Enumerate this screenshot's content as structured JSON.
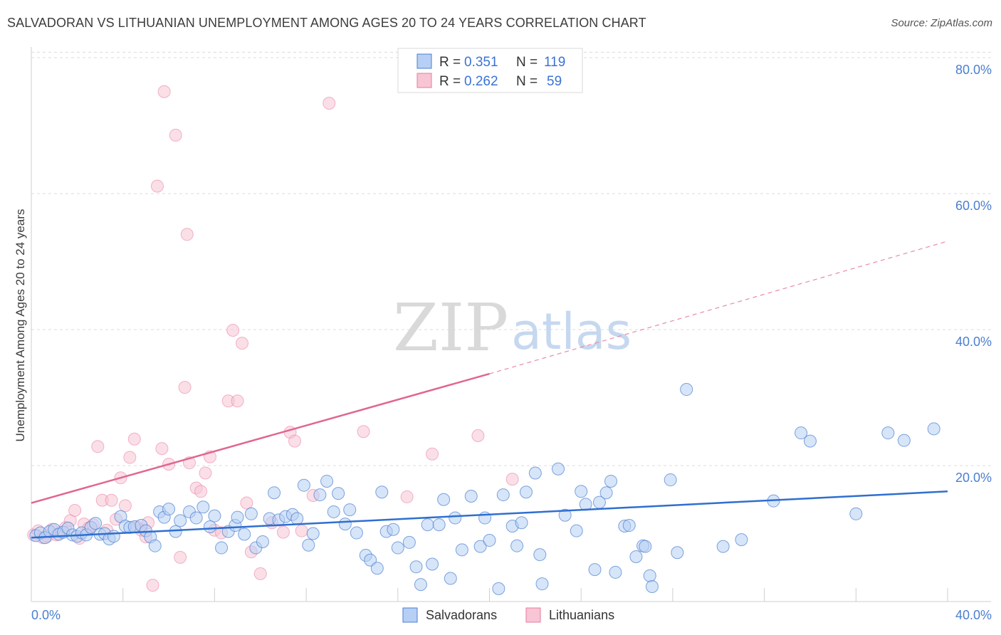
{
  "title": "SALVADORAN VS LITHUANIAN UNEMPLOYMENT AMONG AGES 20 TO 24 YEARS CORRELATION CHART",
  "source": "Source: ZipAtlas.com",
  "watermark": {
    "zip": "ZIP",
    "atlas": "atlas"
  },
  "legend": {
    "rows": [
      {
        "r_label": "R =",
        "r_value": "0.351",
        "n_label": "N =",
        "n_value": "119",
        "color": "#a9c4f0"
      },
      {
        "r_label": "R =",
        "r_value": "0.262",
        "n_label": "N =",
        "n_value": "59",
        "color": "#f6b7c9"
      }
    ]
  },
  "bottom_legend": [
    "Salvadorans",
    "Lithuanians"
  ],
  "chart_data": {
    "type": "scatter",
    "title": "SALVADORAN VS LITHUANIAN UNEMPLOYMENT AMONG AGES 20 TO 24 YEARS CORRELATION CHART",
    "xlabel": "",
    "ylabel": "Unemployment Among Ages 20 to 24 years",
    "xlim": [
      0,
      40
    ],
    "ylim": [
      0,
      80
    ],
    "x_tick_labels": [
      "0.0%",
      "40.0%"
    ],
    "y_tick_labels": [
      "20.0%",
      "40.0%",
      "60.0%",
      "80.0%"
    ],
    "y_ticks": [
      20,
      40,
      60,
      80
    ],
    "grid": true,
    "legend_position": "top-center",
    "colors": {
      "salvadorans": "#4a7fd0",
      "lithuanians": "#e87aa0",
      "salvadorans_fill": "#b7cff4",
      "lithuanians_fill": "#f8c5d4"
    },
    "series": [
      {
        "name": "Salvadorans",
        "trend": {
          "x": [
            0,
            40
          ],
          "y": [
            9.4,
            16.2
          ]
        },
        "points": [
          [
            0.2,
            9.7
          ],
          [
            0.4,
            10.1
          ],
          [
            0.6,
            9.4
          ],
          [
            0.8,
            10.3
          ],
          [
            1.0,
            10.6
          ],
          [
            1.2,
            9.9
          ],
          [
            1.4,
            10.2
          ],
          [
            1.6,
            10.8
          ],
          [
            1.8,
            9.8
          ],
          [
            2.0,
            9.6
          ],
          [
            2.2,
            10.1
          ],
          [
            2.4,
            9.8
          ],
          [
            2.6,
            10.9
          ],
          [
            2.8,
            11.5
          ],
          [
            3.0,
            9.9
          ],
          [
            3.2,
            10.0
          ],
          [
            3.4,
            9.2
          ],
          [
            3.6,
            9.6
          ],
          [
            3.9,
            12.5
          ],
          [
            4.1,
            11.1
          ],
          [
            4.3,
            10.9
          ],
          [
            4.5,
            11.0
          ],
          [
            4.8,
            11.2
          ],
          [
            5.0,
            10.4
          ],
          [
            5.2,
            9.5
          ],
          [
            5.4,
            8.2
          ],
          [
            5.6,
            13.2
          ],
          [
            5.8,
            12.4
          ],
          [
            6.0,
            13.6
          ],
          [
            6.3,
            10.3
          ],
          [
            6.5,
            11.9
          ],
          [
            6.9,
            13.2
          ],
          [
            7.2,
            12.3
          ],
          [
            7.5,
            13.9
          ],
          [
            7.8,
            11.0
          ],
          [
            8.0,
            12.6
          ],
          [
            8.3,
            7.9
          ],
          [
            8.6,
            10.3
          ],
          [
            8.9,
            11.2
          ],
          [
            9.0,
            12.4
          ],
          [
            9.3,
            9.9
          ],
          [
            9.6,
            12.9
          ],
          [
            9.8,
            7.9
          ],
          [
            10.1,
            8.8
          ],
          [
            10.4,
            12.2
          ],
          [
            10.6,
            16.0
          ],
          [
            10.8,
            12.0
          ],
          [
            11.1,
            12.5
          ],
          [
            11.4,
            12.8
          ],
          [
            11.6,
            12.2
          ],
          [
            11.9,
            17.1
          ],
          [
            12.1,
            8.3
          ],
          [
            12.3,
            10.0
          ],
          [
            12.6,
            15.7
          ],
          [
            12.9,
            17.7
          ],
          [
            13.2,
            13.2
          ],
          [
            13.4,
            15.9
          ],
          [
            13.7,
            11.4
          ],
          [
            13.9,
            13.5
          ],
          [
            14.2,
            10.1
          ],
          [
            14.6,
            6.8
          ],
          [
            14.8,
            6.1
          ],
          [
            15.1,
            4.9
          ],
          [
            15.3,
            16.1
          ],
          [
            15.5,
            10.3
          ],
          [
            15.8,
            10.6
          ],
          [
            16.0,
            7.9
          ],
          [
            16.5,
            8.7
          ],
          [
            16.8,
            5.1
          ],
          [
            17.0,
            2.5
          ],
          [
            17.3,
            11.3
          ],
          [
            17.5,
            5.5
          ],
          [
            17.8,
            11.3
          ],
          [
            18.0,
            15.0
          ],
          [
            18.3,
            3.4
          ],
          [
            18.5,
            12.3
          ],
          [
            18.8,
            7.6
          ],
          [
            19.2,
            15.5
          ],
          [
            19.6,
            8.1
          ],
          [
            19.8,
            12.3
          ],
          [
            20.0,
            9.0
          ],
          [
            20.4,
            1.9
          ],
          [
            20.6,
            15.7
          ],
          [
            21.0,
            11.1
          ],
          [
            21.2,
            8.2
          ],
          [
            21.4,
            11.6
          ],
          [
            21.6,
            16.1
          ],
          [
            22.0,
            18.9
          ],
          [
            22.2,
            6.9
          ],
          [
            22.3,
            2.6
          ],
          [
            23.0,
            19.5
          ],
          [
            23.3,
            12.7
          ],
          [
            23.8,
            10.4
          ],
          [
            24.0,
            16.2
          ],
          [
            24.2,
            14.3
          ],
          [
            24.6,
            4.7
          ],
          [
            24.8,
            14.6
          ],
          [
            25.1,
            16.0
          ],
          [
            25.3,
            17.7
          ],
          [
            25.5,
            4.3
          ],
          [
            25.9,
            11.1
          ],
          [
            26.1,
            11.2
          ],
          [
            26.4,
            6.6
          ],
          [
            26.7,
            8.2
          ],
          [
            26.8,
            8.1
          ],
          [
            27.0,
            3.8
          ],
          [
            27.1,
            2.2
          ],
          [
            27.9,
            17.9
          ],
          [
            28.2,
            7.2
          ],
          [
            28.6,
            31.2
          ],
          [
            30.2,
            8.1
          ],
          [
            31.0,
            9.1
          ],
          [
            32.4,
            14.8
          ],
          [
            33.6,
            24.8
          ],
          [
            34.0,
            23.6
          ],
          [
            36.0,
            12.9
          ],
          [
            37.4,
            24.8
          ],
          [
            38.1,
            23.7
          ],
          [
            39.4,
            25.4
          ]
        ]
      },
      {
        "name": "Lithuanians",
        "trend": {
          "x": [
            0,
            20
          ],
          "y": [
            14.5,
            33.5
          ]
        },
        "trend_dashed": {
          "x": [
            20,
            40
          ],
          "y": [
            33.5,
            53.0
          ]
        },
        "points": [
          [
            0.1,
            9.8
          ],
          [
            0.3,
            10.4
          ],
          [
            0.5,
            9.4
          ],
          [
            0.7,
            9.6
          ],
          [
            0.9,
            10.6
          ],
          [
            1.1,
            9.8
          ],
          [
            1.3,
            10.2
          ],
          [
            1.5,
            10.9
          ],
          [
            1.7,
            11.9
          ],
          [
            1.9,
            13.4
          ],
          [
            2.1,
            9.3
          ],
          [
            2.3,
            11.4
          ],
          [
            2.5,
            10.8
          ],
          [
            2.7,
            11.3
          ],
          [
            2.9,
            22.8
          ],
          [
            3.1,
            14.9
          ],
          [
            3.3,
            10.5
          ],
          [
            3.5,
            14.9
          ],
          [
            3.7,
            12.1
          ],
          [
            3.9,
            18.2
          ],
          [
            4.1,
            14.1
          ],
          [
            4.3,
            21.2
          ],
          [
            4.5,
            23.9
          ],
          [
            4.6,
            11.0
          ],
          [
            4.8,
            10.5
          ],
          [
            5.0,
            9.5
          ],
          [
            5.1,
            11.6
          ],
          [
            5.3,
            2.4
          ],
          [
            5.5,
            61.1
          ],
          [
            5.7,
            22.5
          ],
          [
            5.8,
            75.0
          ],
          [
            6.0,
            20.2
          ],
          [
            6.3,
            68.6
          ],
          [
            6.5,
            6.5
          ],
          [
            6.7,
            31.5
          ],
          [
            6.8,
            54.0
          ],
          [
            6.9,
            20.4
          ],
          [
            7.2,
            16.7
          ],
          [
            7.4,
            16.2
          ],
          [
            7.6,
            18.9
          ],
          [
            7.8,
            21.3
          ],
          [
            8.0,
            10.5
          ],
          [
            8.3,
            10.1
          ],
          [
            8.6,
            29.5
          ],
          [
            8.8,
            39.9
          ],
          [
            9.0,
            29.5
          ],
          [
            9.2,
            38.0
          ],
          [
            9.4,
            14.5
          ],
          [
            9.6,
            7.3
          ],
          [
            10.0,
            4.1
          ],
          [
            10.5,
            11.6
          ],
          [
            11.0,
            10.2
          ],
          [
            11.3,
            24.9
          ],
          [
            11.5,
            23.6
          ],
          [
            11.8,
            10.4
          ],
          [
            12.3,
            15.6
          ],
          [
            13.0,
            73.3
          ],
          [
            14.5,
            25.0
          ],
          [
            16.4,
            15.4
          ]
        ]
      }
    ],
    "extra_lithuanian_points": [
      [
        17.5,
        21.7
      ],
      [
        19.5,
        24.4
      ],
      [
        21.0,
        18.0
      ]
    ]
  }
}
